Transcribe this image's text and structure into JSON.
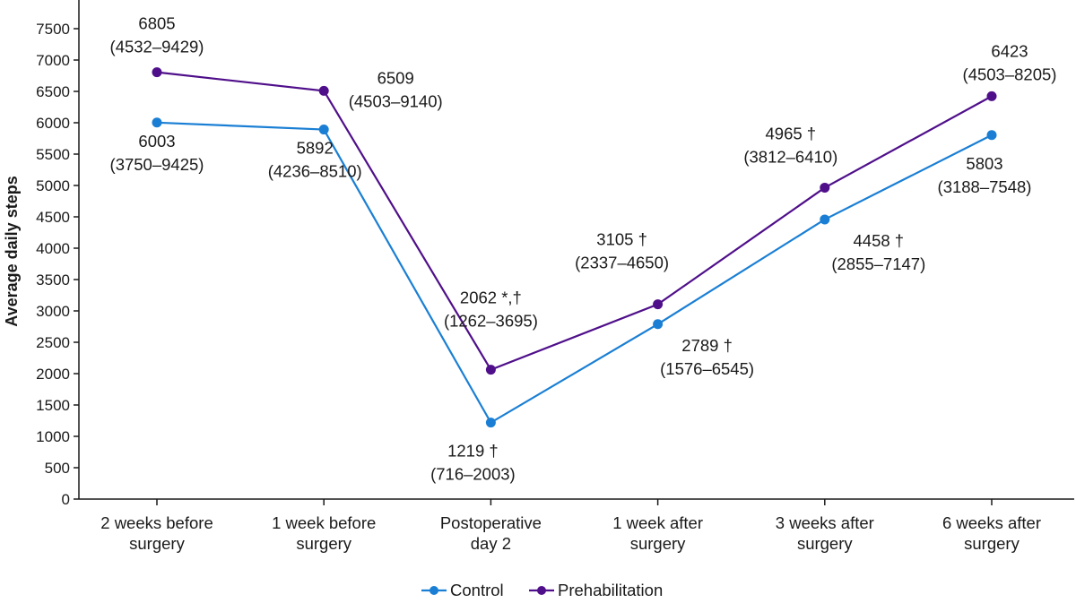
{
  "chart_data": {
    "type": "line",
    "ylabel": "Average daily steps",
    "xlabel": "",
    "ylim": [
      0,
      7500
    ],
    "yticks": [
      0,
      500,
      1000,
      1500,
      2000,
      2500,
      3000,
      3500,
      4000,
      4500,
      5000,
      5500,
      6000,
      6500,
      7000,
      7500
    ],
    "categories": [
      [
        "2 weeks before",
        "surgery"
      ],
      [
        "1 week before",
        "surgery"
      ],
      [
        "Postoperative",
        "day 2"
      ],
      [
        "1 week after",
        "surgery"
      ],
      [
        "3 weeks after",
        "surgery"
      ],
      [
        "6 weeks after",
        "surgery"
      ]
    ],
    "legend_position": "bottom",
    "series": [
      {
        "name": "Control",
        "color": "#1a7fd4",
        "values": [
          6003,
          5892,
          1219,
          2789,
          4458,
          5803
        ],
        "labels": [
          [
            "6003",
            "(3750–9425)"
          ],
          [
            "5892",
            "(4236–8510)"
          ],
          [
            "1219 †",
            "(716–2003)"
          ],
          [
            "2789 †",
            "(1576–6545)"
          ],
          [
            "4458 †",
            "(2855–7147)"
          ],
          [
            "5803",
            "(3188–7548)"
          ]
        ]
      },
      {
        "name": "Prehabilitation",
        "color": "#4f0f8a",
        "values": [
          6805,
          6509,
          2062,
          3105,
          4965,
          6423
        ],
        "labels": [
          [
            "6805",
            "(4532–9429)"
          ],
          [
            "6509",
            "(4503–9140)"
          ],
          [
            "2062 *,†",
            "(1262–3695)"
          ],
          [
            "3105 †",
            "(2337–4650)"
          ],
          [
            "4965 †",
            "(3812–6410)"
          ],
          [
            "6423",
            "(4503–8205)"
          ]
        ]
      }
    ]
  }
}
